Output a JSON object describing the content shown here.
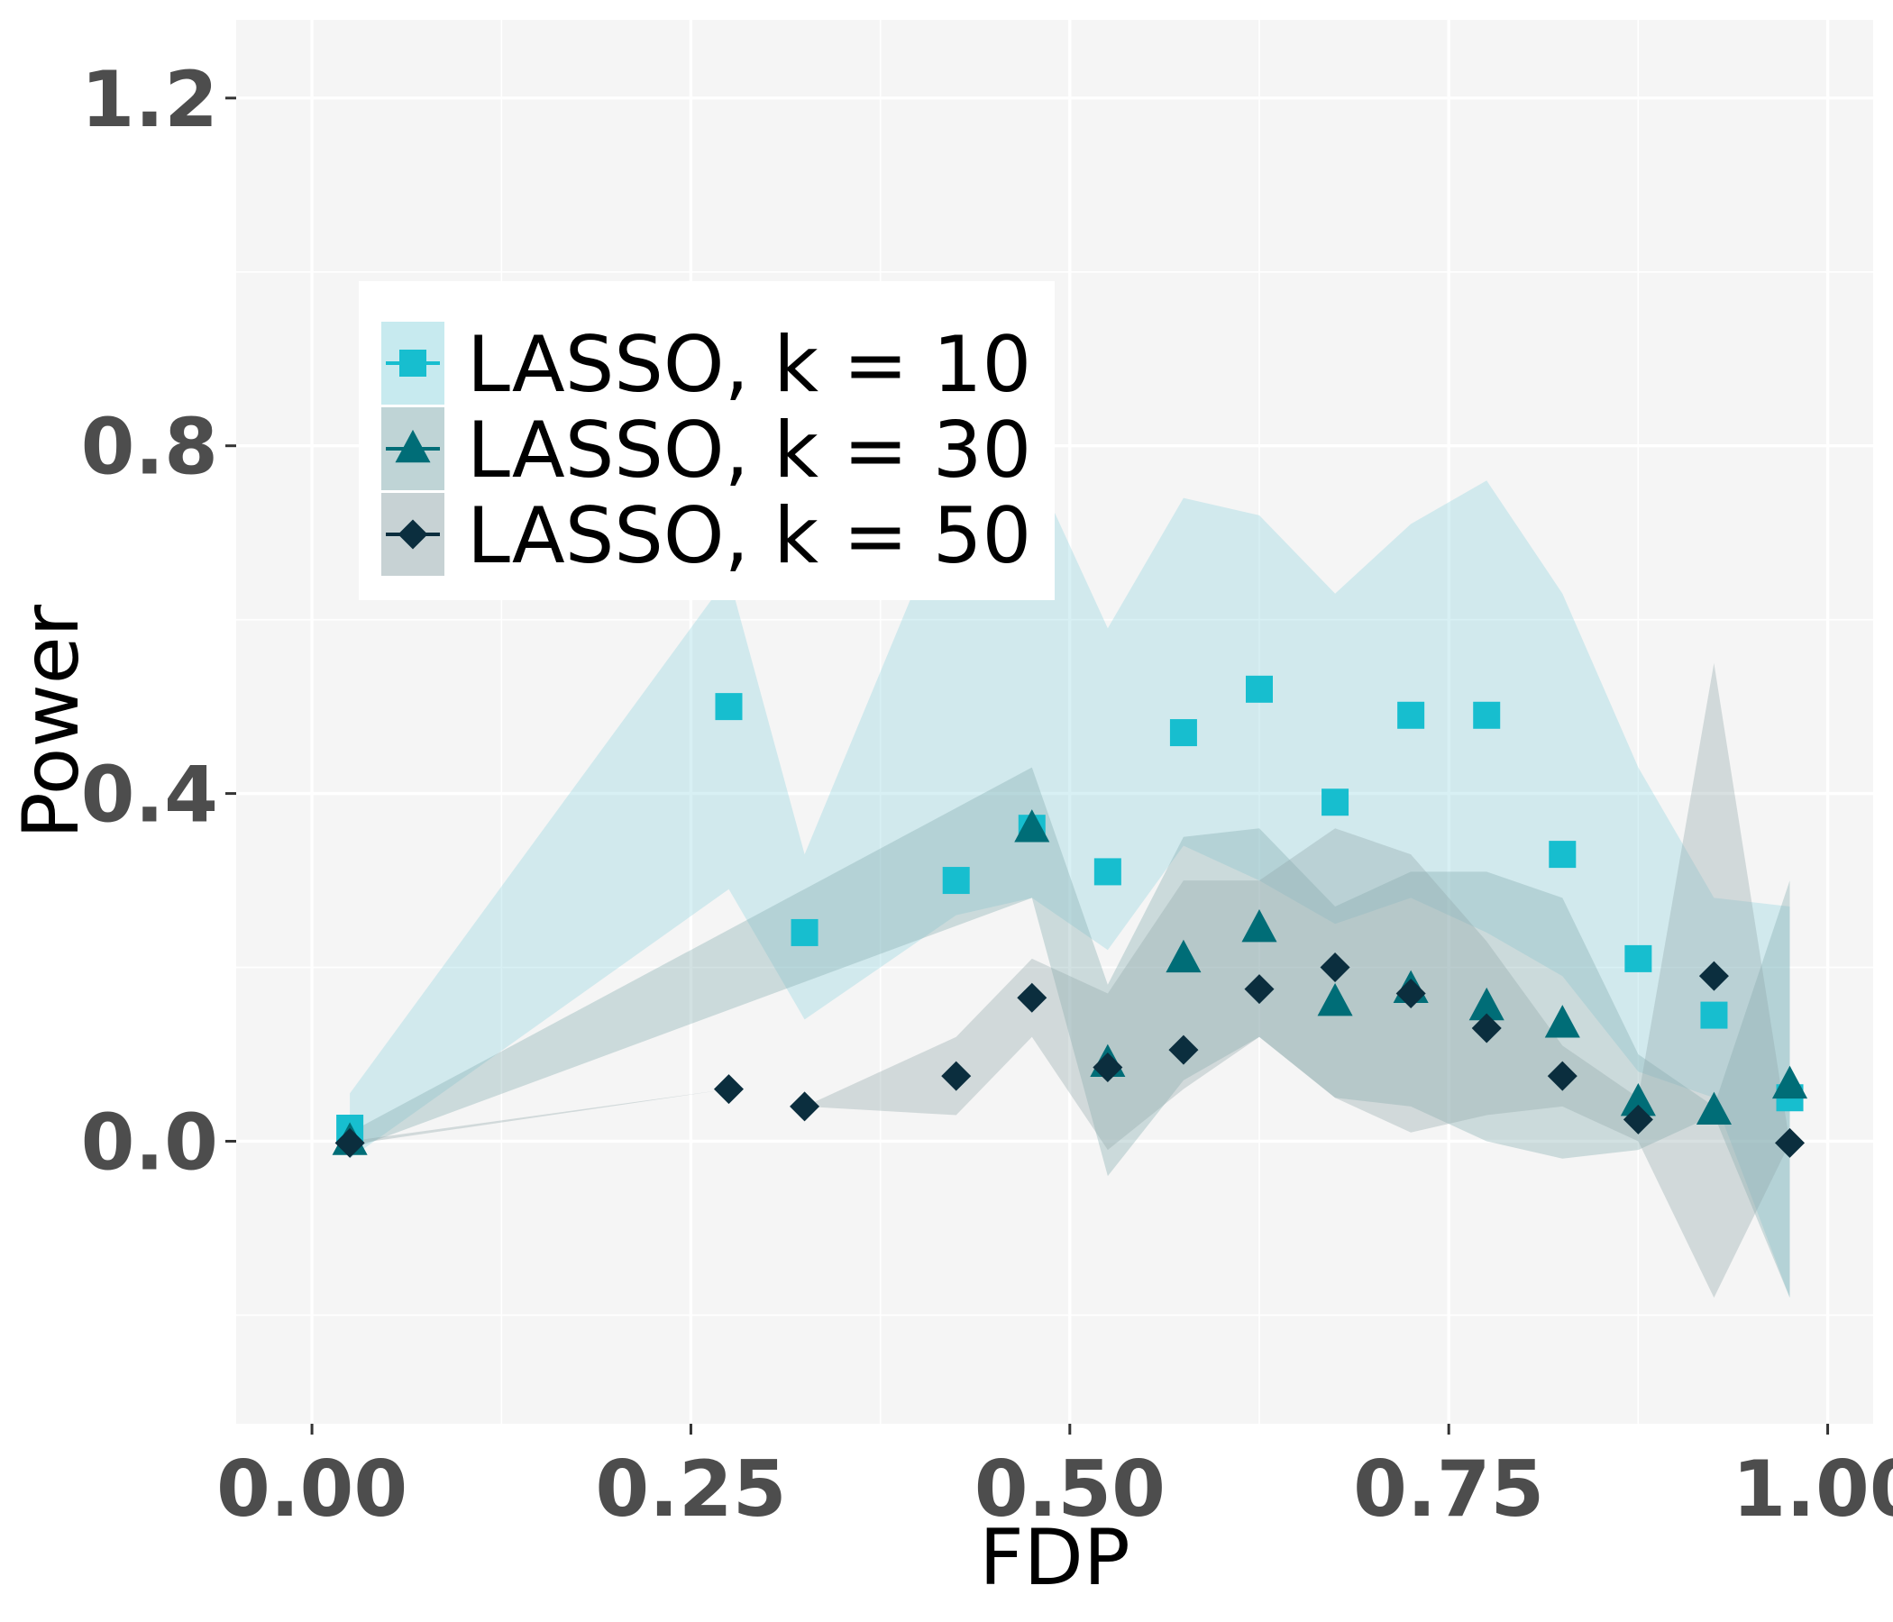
{
  "chart_data": {
    "type": "scatter",
    "xlabel": "FDP",
    "ylabel": "Power",
    "xlim": [
      -0.05,
      1.03
    ],
    "ylim": [
      -0.325,
      1.29
    ],
    "x_ticks": [
      0.0,
      0.25,
      0.5,
      0.75,
      1.0
    ],
    "x_tick_labels": [
      "0.00",
      "0.25",
      "0.50",
      "0.75",
      "1.00"
    ],
    "y_ticks": [
      0.0,
      0.4,
      0.8,
      1.2
    ],
    "y_tick_labels": [
      "0.0",
      "0.4",
      "0.8",
      "1.2"
    ],
    "grid": true,
    "legend_position": "top-left",
    "series": [
      {
        "name": "LASSO, k = 10",
        "color": "#17becf",
        "marker": "square",
        "band_color": "#8fd5df",
        "x": [
          0.025,
          0.275,
          0.325,
          0.425,
          0.475,
          0.525,
          0.575,
          0.625,
          0.675,
          0.725,
          0.775,
          0.825,
          0.875,
          0.925,
          0.975
        ],
        "y": [
          0.015,
          0.5,
          0.24,
          0.3,
          0.36,
          0.31,
          0.47,
          0.52,
          0.39,
          0.49,
          0.49,
          0.33,
          0.21,
          0.145,
          0.05
        ],
        "upper": [
          0.055,
          0.65,
          0.33,
          0.75,
          0.78,
          0.59,
          0.74,
          0.72,
          0.63,
          0.71,
          0.76,
          0.63,
          0.43,
          0.28,
          0.27
        ],
        "lower": [
          -0.02,
          0.29,
          0.14,
          0.26,
          0.28,
          0.22,
          0.34,
          0.3,
          0.25,
          0.28,
          0.24,
          0.19,
          0.08,
          0.05,
          -0.18
        ]
      },
      {
        "name": "LASSO, k = 30",
        "color": "#006d77",
        "marker": "triangle",
        "band_color": "#7fa9ad",
        "x": [
          0.025,
          0.475,
          0.525,
          0.575,
          0.625,
          0.675,
          0.725,
          0.775,
          0.825,
          0.875,
          0.925,
          0.975
        ],
        "y": [
          0.0,
          0.36,
          0.09,
          0.21,
          0.245,
          0.16,
          0.175,
          0.155,
          0.135,
          0.045,
          0.035,
          0.065
        ],
        "upper": [
          0.01,
          0.43,
          0.18,
          0.35,
          0.36,
          0.27,
          0.31,
          0.31,
          0.28,
          0.1,
          0.04,
          0.3
        ],
        "lower": [
          -0.01,
          0.28,
          -0.04,
          0.07,
          0.12,
          0.05,
          0.04,
          0.0,
          -0.02,
          -0.01,
          0.03,
          -0.18
        ]
      },
      {
        "name": "LASSO, k = 50",
        "color": "#0b2e3e",
        "marker": "diamond",
        "band_color": "#8fa6aa",
        "x": [
          0.025,
          0.275,
          0.325,
          0.425,
          0.475,
          0.525,
          0.575,
          0.625,
          0.675,
          0.725,
          0.775,
          0.825,
          0.875,
          0.925,
          0.975
        ],
        "y": [
          -0.002,
          0.06,
          0.04,
          0.075,
          0.165,
          0.085,
          0.105,
          0.175,
          0.2,
          0.17,
          0.13,
          0.075,
          0.025,
          0.19,
          -0.002
        ],
        "upper": [
          0.0,
          0.06,
          0.04,
          0.12,
          0.21,
          0.17,
          0.3,
          0.3,
          0.36,
          0.33,
          0.23,
          0.11,
          0.05,
          0.55,
          -0.002
        ],
        "lower": [
          -0.004,
          0.06,
          0.04,
          0.03,
          0.12,
          -0.01,
          0.06,
          0.12,
          0.05,
          0.01,
          0.03,
          0.04,
          0.0,
          -0.18,
          -0.002
        ]
      }
    ]
  }
}
